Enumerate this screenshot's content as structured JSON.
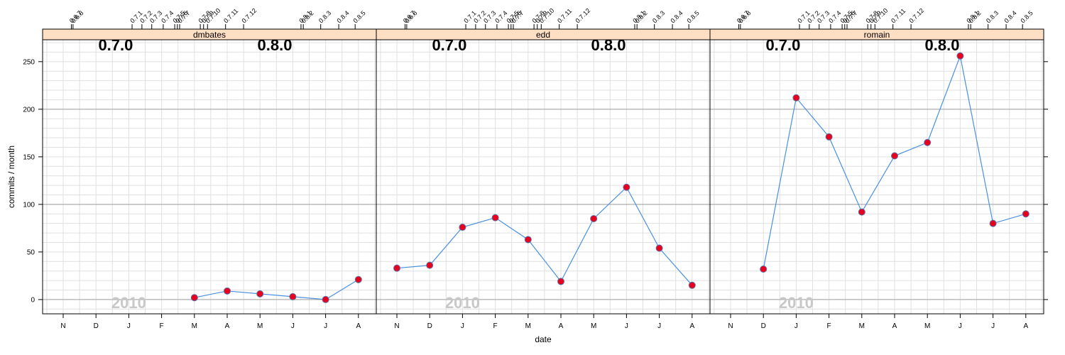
{
  "chart_data": {
    "type": "line",
    "xlabel": "date",
    "ylabel": "commits / month",
    "ylim": [
      -15,
      273
    ],
    "y_ticks": [
      0,
      50,
      100,
      150,
      200,
      250
    ],
    "months": [
      "N",
      "D",
      "J",
      "F",
      "M",
      "A",
      "M",
      "J",
      "J",
      "A"
    ],
    "year_label": "2010",
    "major_releases": [
      {
        "label": "0.7.0",
        "month_pos": 1.6
      },
      {
        "label": "0.8.0",
        "month_pos": 6.45
      }
    ],
    "release_ticks": [
      {
        "label": "0.6.7",
        "month_pos": 0.25
      },
      {
        "label": "0.6.8",
        "month_pos": 0.3
      },
      {
        "label": "0.7.1",
        "month_pos": 2.1
      },
      {
        "label": "0.7.2",
        "month_pos": 2.4
      },
      {
        "label": "0.7.3",
        "month_pos": 2.7
      },
      {
        "label": "0.7.4",
        "month_pos": 3.05
      },
      {
        "label": "0.7.5",
        "month_pos": 3.4
      },
      {
        "label": "0.7.6",
        "month_pos": 3.48
      },
      {
        "label": "0.7.7",
        "month_pos": 3.55
      },
      {
        "label": "0.7.8",
        "month_pos": 4.18
      },
      {
        "label": "0.7.9",
        "month_pos": 4.28
      },
      {
        "label": "0.7.10",
        "month_pos": 4.4
      },
      {
        "label": "0.7.11",
        "month_pos": 4.95
      },
      {
        "label": "0.7.12",
        "month_pos": 5.5
      },
      {
        "label": "0.8.1",
        "month_pos": 7.25
      },
      {
        "label": "0.8.2",
        "month_pos": 7.32
      },
      {
        "label": "0.8.3",
        "month_pos": 7.85
      },
      {
        "label": "0.8.4",
        "month_pos": 8.4
      },
      {
        "label": "0.8.5",
        "month_pos": 8.9
      }
    ],
    "panels": [
      {
        "name": "dmbates",
        "x": [
          4,
          5,
          6,
          7,
          8,
          9
        ],
        "values": [
          2,
          9,
          6,
          3,
          0,
          21
        ]
      },
      {
        "name": "edd",
        "x": [
          0,
          1,
          2,
          3,
          4,
          5,
          6,
          7,
          8,
          9
        ],
        "values": [
          33,
          36,
          76,
          86,
          63,
          19,
          85,
          118,
          54,
          15
        ]
      },
      {
        "name": "romain",
        "x": [
          1,
          2,
          3,
          4,
          5,
          6,
          7,
          8,
          9
        ],
        "values": [
          32,
          212,
          171,
          92,
          151,
          165,
          256,
          80,
          90
        ]
      }
    ],
    "grid": true,
    "colors": {
      "line": "#4a90e2",
      "point_fill": "#e8001c",
      "point_stroke": "#5a6ea8",
      "strip": "#ffdfc4",
      "grid": "#e0e0e0",
      "refline": "#a0a0a0"
    }
  }
}
